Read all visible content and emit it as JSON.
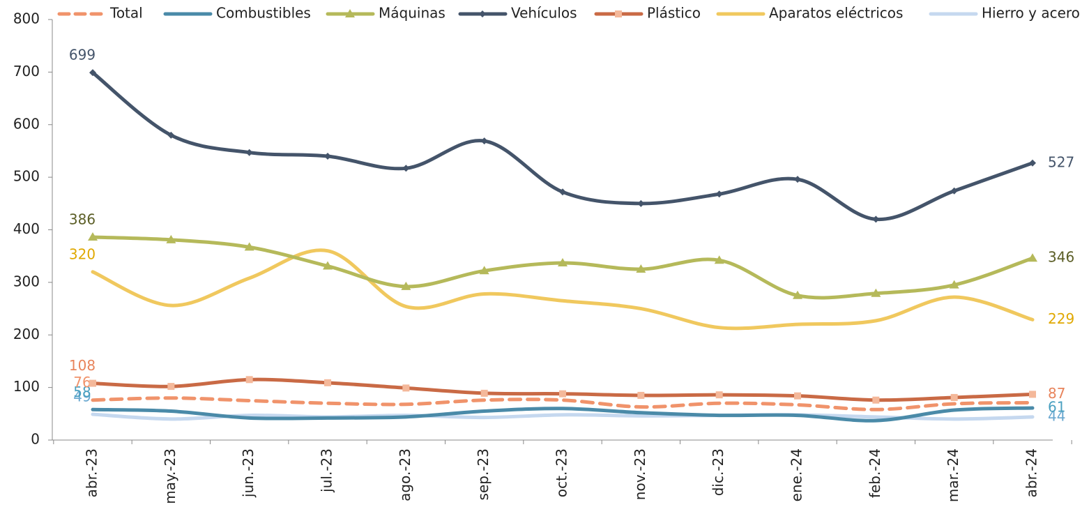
{
  "chart_data": {
    "type": "line",
    "categories": [
      "abr.-23",
      "may.-23",
      "jun.-23",
      "jul.-23",
      "ago.-23",
      "sep.-23",
      "oct.-23",
      "nov.-23",
      "dic.-23",
      "ene.-24",
      "feb.-24",
      "mar.-24",
      "abr.-24"
    ],
    "ylim": [
      0,
      800
    ],
    "yticks": [
      0,
      100,
      200,
      300,
      400,
      500,
      600,
      700,
      800
    ],
    "series": [
      {
        "name": "Total",
        "color": "#f0936b",
        "dash": true,
        "values": [
          76,
          80,
          75,
          70,
          68,
          76,
          76,
          63,
          70,
          67,
          58,
          69,
          71
        ],
        "labeled": [
          0
        ]
      },
      {
        "name": "Combustibles",
        "color": "#4a8aa8",
        "values": [
          58,
          55,
          42,
          42,
          44,
          55,
          60,
          52,
          47,
          47,
          37,
          57,
          61
        ],
        "labeled": [
          0,
          12
        ],
        "label_color": "#4aa0c0"
      },
      {
        "name": "Máquinas",
        "color": "#b5b95a",
        "marker": "triangle",
        "values": [
          386,
          381,
          367,
          331,
          292,
          322,
          337,
          325,
          342,
          275,
          279,
          295,
          346
        ],
        "labeled": [
          0,
          12
        ],
        "label_color": "#5b5e26"
      },
      {
        "name": "Vehículos",
        "color": "#44546a",
        "marker": "diamond",
        "values": [
          699,
          580,
          547,
          540,
          517,
          569,
          472,
          450,
          468,
          496,
          420,
          474,
          527
        ],
        "labeled": [
          0,
          12
        ]
      },
      {
        "name": "Plástico",
        "color": "#c96a45",
        "marker": "square",
        "marker_color": "#f4b89a",
        "values": [
          108,
          102,
          115,
          109,
          99,
          89,
          88,
          85,
          86,
          84,
          76,
          81,
          87
        ],
        "labeled": [
          0,
          12
        ],
        "label_color": "#e8845c"
      },
      {
        "name": "Aparatos eléctricos",
        "color": "#f0c85e",
        "values": [
          320,
          256,
          308,
          360,
          254,
          278,
          265,
          250,
          214,
          220,
          227,
          272,
          229
        ],
        "labeled": [
          0,
          12
        ],
        "label_color": "#e0a800"
      },
      {
        "name": "Hierro y acero",
        "color": "#c5d8ef",
        "values": [
          49,
          40,
          47,
          44,
          47,
          43,
          48,
          46,
          47,
          48,
          44,
          40,
          44
        ],
        "labeled": [
          0,
          12
        ],
        "label_color": "#6aa8d0"
      }
    ]
  }
}
